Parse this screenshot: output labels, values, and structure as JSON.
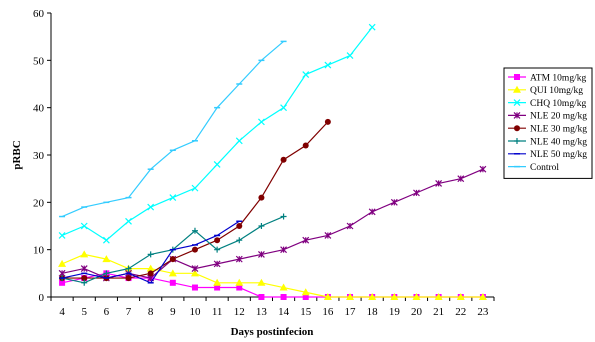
{
  "chart_data": {
    "type": "line",
    "title": "",
    "xlabel": "Days postinfecion",
    "ylabel": "pRBC",
    "xlim": [
      4,
      23
    ],
    "ylim": [
      0,
      60
    ],
    "x_ticks": [
      4,
      5,
      6,
      7,
      8,
      9,
      10,
      11,
      12,
      13,
      14,
      15,
      16,
      17,
      18,
      19,
      20,
      21,
      22,
      23
    ],
    "y_ticks": [
      0,
      10,
      20,
      30,
      40,
      50,
      60
    ],
    "grid": false,
    "legend_position": "right",
    "series": [
      {
        "name": "ATM 10mg/kg",
        "color": "#ff00ff",
        "marker": "square",
        "x": [
          4,
          5,
          6,
          7,
          8,
          9,
          10,
          11,
          12,
          13,
          14,
          15,
          16,
          17,
          18,
          19,
          20,
          21,
          22,
          23
        ],
        "y": [
          3,
          4,
          5,
          4,
          4,
          3,
          2,
          2,
          2,
          0,
          0,
          0,
          0,
          0,
          0,
          0,
          0,
          0,
          0,
          0
        ]
      },
      {
        "name": "QUI 10mg/kg",
        "color": "#ffff00",
        "marker": "triangle",
        "x": [
          4,
          5,
          6,
          7,
          8,
          9,
          10,
          11,
          12,
          13,
          14,
          15,
          16,
          17,
          18,
          19,
          20,
          21,
          22,
          23
        ],
        "y": [
          7,
          9,
          8,
          6,
          6,
          5,
          5,
          3,
          3,
          3,
          2,
          1,
          0,
          0,
          0,
          0,
          0,
          0,
          0,
          0
        ]
      },
      {
        "name": "CHQ 10mg/kg",
        "color": "#00ffff",
        "marker": "x",
        "x": [
          4,
          5,
          6,
          7,
          8,
          9,
          10,
          11,
          12,
          13,
          14,
          15,
          16,
          17,
          18
        ],
        "y": [
          13,
          15,
          12,
          16,
          19,
          21,
          23,
          28,
          33,
          37,
          40,
          47,
          49,
          51,
          57
        ]
      },
      {
        "name": "NLE 20 mg/kg",
        "color": "#800080",
        "marker": "star",
        "x": [
          4,
          5,
          6,
          7,
          8,
          9,
          10,
          11,
          12,
          13,
          14,
          15,
          16,
          17,
          18,
          19,
          20,
          21,
          22,
          23
        ],
        "y": [
          5,
          6,
          4,
          5,
          4,
          8,
          6,
          7,
          8,
          9,
          10,
          12,
          13,
          15,
          18,
          20,
          22,
          24,
          25,
          27
        ]
      },
      {
        "name": "NLE 30 mg/kg",
        "color": "#800000",
        "marker": "circle",
        "x": [
          4,
          5,
          6,
          7,
          8,
          9,
          10,
          11,
          12,
          13,
          14,
          15,
          16
        ],
        "y": [
          4,
          4,
          4,
          4,
          5,
          8,
          10,
          12,
          15,
          21,
          29,
          32,
          37
        ]
      },
      {
        "name": "NLE 40 mg/kg",
        "color": "#008080",
        "marker": "plus",
        "x": [
          4,
          5,
          6,
          7,
          8,
          9,
          10,
          11,
          12,
          13,
          14
        ],
        "y": [
          4,
          3,
          5,
          6,
          9,
          10,
          14,
          10,
          12,
          15,
          17
        ]
      },
      {
        "name": "NLE 50 mg/kg",
        "color": "#0000cc",
        "marker": "dash",
        "x": [
          4,
          5,
          6,
          7,
          8,
          9,
          10,
          11,
          12
        ],
        "y": [
          4,
          5,
          4,
          5,
          3,
          10,
          11,
          13,
          16
        ]
      },
      {
        "name": "Control",
        "color": "#33ccff",
        "marker": "dash",
        "x": [
          4,
          5,
          6,
          7,
          8,
          9,
          10,
          11,
          12,
          13,
          14
        ],
        "y": [
          17,
          19,
          20,
          21,
          27,
          31,
          33,
          40,
          45,
          50,
          54
        ]
      }
    ]
  }
}
